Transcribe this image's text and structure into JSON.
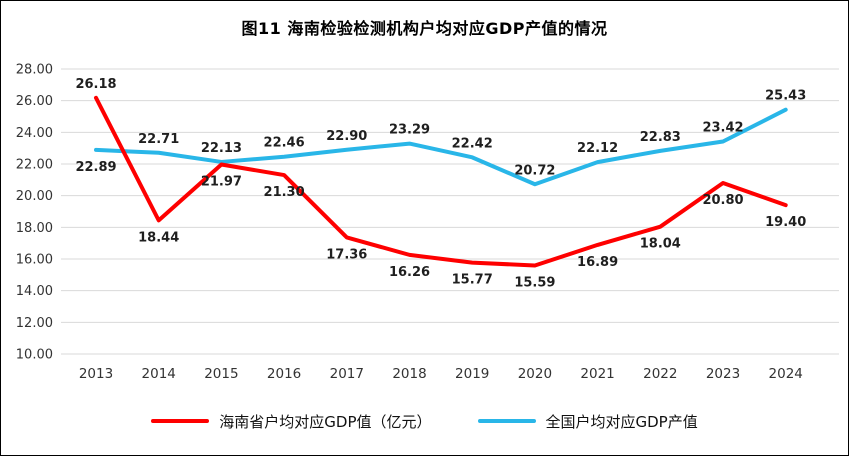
{
  "title": "图11 海南检验检测机构户均对应GDP产值的情况",
  "chart_data": {
    "type": "line",
    "categories": [
      "2013",
      "2014",
      "2015",
      "2016",
      "2017",
      "2018",
      "2019",
      "2020",
      "2021",
      "2022",
      "2023",
      "2024"
    ],
    "series": [
      {
        "name": "海南省户均对应GDP值（亿元）",
        "color": "#fe0000",
        "values": [
          26.18,
          18.44,
          21.97,
          21.3,
          17.36,
          16.26,
          15.77,
          15.59,
          16.89,
          18.04,
          20.8,
          19.4
        ]
      },
      {
        "name": "全国户均对应GDP产值",
        "color": "#29b6e8",
        "values": [
          22.89,
          22.71,
          22.13,
          22.46,
          22.9,
          23.29,
          22.42,
          20.72,
          22.12,
          22.83,
          23.42,
          25.43
        ]
      }
    ],
    "ylim": [
      10,
      28
    ],
    "ytick_step": 2,
    "ytick_labels": [
      "10.00",
      "12.00",
      "14.00",
      "16.00",
      "18.00",
      "20.00",
      "22.00",
      "24.00",
      "26.00",
      "28.00"
    ],
    "grid": true,
    "value_labels": true,
    "legend_position": "bottom"
  }
}
